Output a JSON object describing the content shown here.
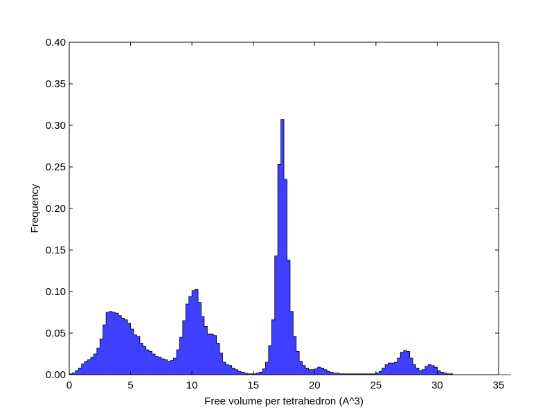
{
  "chart_data": {
    "type": "bar",
    "title": "",
    "xlabel": "Free volume per tetrahedron (A^3)",
    "ylabel": "Frequency",
    "xlim": [
      0,
      35
    ],
    "ylim": [
      0,
      0.4
    ],
    "x_ticks": [
      0,
      5,
      10,
      15,
      20,
      25,
      30,
      35
    ],
    "y_ticks": [
      0,
      0.05,
      0.1,
      0.15,
      0.2,
      0.25,
      0.3,
      0.35,
      0.4
    ],
    "x_tick_labels": [
      "0",
      "5",
      "10",
      "15",
      "20",
      "25",
      "30",
      "35"
    ],
    "y_tick_labels": [
      "0.00",
      "0.05",
      "0.10",
      "0.15",
      "0.20",
      "0.25",
      "0.30",
      "0.35",
      "0.40"
    ],
    "grid": false,
    "legend": "none",
    "bin_edges_start": 0,
    "bin_width": 0.25,
    "values": [
      0.001,
      0.002,
      0.005,
      0.008,
      0.013,
      0.016,
      0.018,
      0.021,
      0.025,
      0.032,
      0.043,
      0.06,
      0.075,
      0.076,
      0.075,
      0.074,
      0.071,
      0.068,
      0.066,
      0.062,
      0.055,
      0.048,
      0.046,
      0.038,
      0.034,
      0.03,
      0.028,
      0.025,
      0.022,
      0.021,
      0.019,
      0.018,
      0.016,
      0.017,
      0.02,
      0.03,
      0.045,
      0.065,
      0.085,
      0.094,
      0.101,
      0.103,
      0.087,
      0.07,
      0.058,
      0.049,
      0.049,
      0.047,
      0.038,
      0.026,
      0.015,
      0.012,
      0.011,
      0.008,
      0.006,
      0.004,
      0.003,
      0.002,
      0.001,
      0.001,
      0.001,
      0.002,
      0.003,
      0.007,
      0.015,
      0.035,
      0.066,
      0.143,
      0.253,
      0.307,
      0.235,
      0.138,
      0.076,
      0.046,
      0.028,
      0.016,
      0.011,
      0.008,
      0.006,
      0.006,
      0.007,
      0.009,
      0.008,
      0.006,
      0.004,
      0.003,
      0.002,
      0.002,
      0.001,
      0.001,
      0.001,
      0.001,
      0.001,
      0.001,
      0.001,
      0.001,
      0.001,
      0.001,
      0.001,
      0.001,
      0.002,
      0.004,
      0.008,
      0.012,
      0.014,
      0.014,
      0.015,
      0.02,
      0.027,
      0.029,
      0.028,
      0.02,
      0.012,
      0.008,
      0.005,
      0.006,
      0.01,
      0.012,
      0.011,
      0.009,
      0.005,
      0.003,
      0.002,
      0.001,
      0.001,
      0.0,
      0.0,
      0.0,
      0.0,
      0.0,
      0.0,
      0.0,
      0.0,
      0.0,
      0.0,
      0.0,
      0.0,
      0.0,
      0.0,
      0.0,
      0.0,
      0.0,
      0.0,
      0.0
    ],
    "bar_color": "#3f3fff",
    "edge_color": "#000000"
  }
}
